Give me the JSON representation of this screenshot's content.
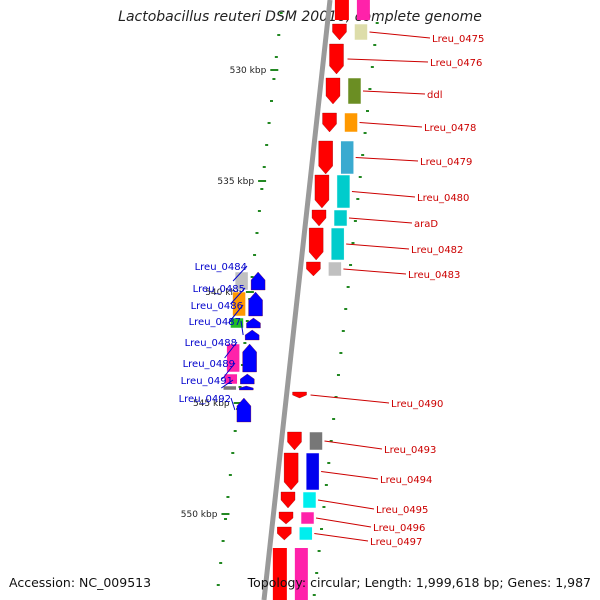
{
  "title": "Lactobacillus reuteri DSM 20016, complete genome",
  "accession": "Accession: NC_009513",
  "topology": "Topology: circular; Length: 1,999,618 bp; Genes: 1,987",
  "colors": {
    "backbone": "#9a9a9a",
    "forward_label": "#cc0000",
    "reverse_label": "#0000cc",
    "tick": "#228822"
  },
  "ticks": [
    {
      "label": "530 kbp"
    },
    {
      "label": "535 kbp"
    },
    {
      "label": "540 kbp"
    },
    {
      "label": "545 kbp"
    },
    {
      "label": "550 kbp"
    }
  ],
  "genes": [
    {
      "label": "Lreu_0475",
      "strand": "forward",
      "cog": "#ddddaa"
    },
    {
      "label": "Lreu_0476",
      "strand": "forward",
      "cog": ""
    },
    {
      "label": "ddl",
      "strand": "forward",
      "cog": "#6b8e23"
    },
    {
      "label": "Lreu_0478",
      "strand": "forward",
      "cog": "#ff9900"
    },
    {
      "label": "Lreu_0479",
      "strand": "forward",
      "cog": "#3aaad0"
    },
    {
      "label": "Lreu_0480",
      "strand": "forward",
      "cog": "#00cccc"
    },
    {
      "label": "araD",
      "strand": "forward",
      "cog": "#00cccc"
    },
    {
      "label": "Lreu_0482",
      "strand": "forward",
      "cog": "#00cccc"
    },
    {
      "label": "Lreu_0483",
      "strand": "forward",
      "cog": "#c0c0c0"
    },
    {
      "label": "Lreu_0484",
      "strand": "reverse",
      "cog": "#c0c0c0"
    },
    {
      "label": "Lreu_0485",
      "strand": "reverse",
      "cog": "#ff9900"
    },
    {
      "label": "Lreu_0486",
      "strand": "reverse",
      "cog": "#22bb22"
    },
    {
      "label": "Lreu_0487",
      "strand": "reverse",
      "cog": ""
    },
    {
      "label": "Lreu_0488",
      "strand": "reverse",
      "cog": "#ff22aa"
    },
    {
      "label": "Lreu_0489",
      "strand": "reverse",
      "cog": "#ff22aa"
    },
    {
      "label": "Lreu_0491",
      "strand": "reverse",
      "cog": "#777777"
    },
    {
      "label": "Lreu_0492",
      "strand": "reverse",
      "cog": ""
    },
    {
      "label": "Lreu_0490",
      "strand": "forward",
      "cog": ""
    },
    {
      "label": "Lreu_0493",
      "strand": "forward",
      "cog": "#777777"
    },
    {
      "label": "Lreu_0494",
      "strand": "forward",
      "cog": "#0000ee"
    },
    {
      "label": "Lreu_0495",
      "strand": "forward",
      "cog": "#00eeee"
    },
    {
      "label": "Lreu_0496",
      "strand": "forward",
      "cog": "#ff22aa"
    },
    {
      "label": "Lreu_0497",
      "strand": "forward",
      "cog": "#00eeee"
    }
  ]
}
